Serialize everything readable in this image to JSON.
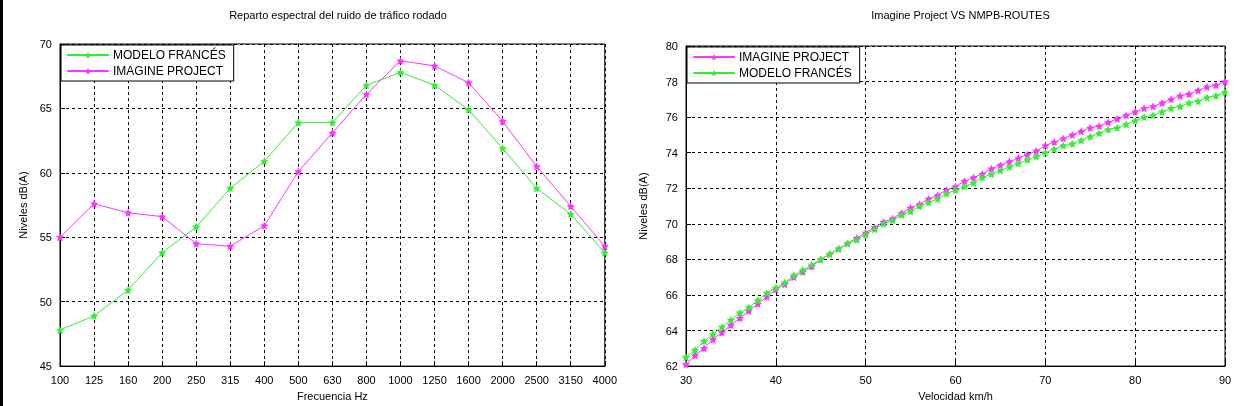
{
  "chart_data": [
    {
      "type": "line",
      "title": "Reparto espectral del ruido de tráfico rodado",
      "xlabel": "Frecuencia Hz",
      "ylabel": "Niveles dB(A)",
      "categories": [
        "100",
        "125",
        "160",
        "200",
        "250",
        "315",
        "400",
        "500",
        "630",
        "800",
        "1000",
        "1250",
        "1600",
        "2000",
        "2500",
        "3150",
        "4000"
      ],
      "series": [
        {
          "name": "MODELO FRANCÉS",
          "color": "#33ee33",
          "values": [
            47.8,
            48.9,
            50.9,
            53.8,
            55.8,
            58.8,
            60.9,
            63.9,
            63.9,
            66.8,
            67.8,
            66.8,
            64.9,
            61.9,
            58.8,
            56.8,
            53.8
          ]
        },
        {
          "name": "IMAGINE PROJECT",
          "color": "#ff33ff",
          "values": [
            55.0,
            57.6,
            56.9,
            56.6,
            54.5,
            54.3,
            55.9,
            60.1,
            63.1,
            66.1,
            68.7,
            68.3,
            67.0,
            64.0,
            60.5,
            57.4,
            54.3
          ]
        }
      ],
      "ylim": [
        45,
        70
      ],
      "yticks": [
        45,
        50,
        55,
        60,
        65,
        70
      ],
      "grid": true,
      "legend": "top left",
      "marker": "star",
      "line_style": "solid"
    },
    {
      "type": "line",
      "title": "Imagine Project VS NMPB-ROUTES",
      "xlabel": "Velocidad km/h",
      "ylabel": "Niveles dB(A)",
      "x": [
        30,
        31,
        32,
        33,
        34,
        35,
        36,
        37,
        38,
        39,
        40,
        41,
        42,
        43,
        44,
        45,
        46,
        47,
        48,
        49,
        50,
        51,
        52,
        53,
        54,
        55,
        56,
        57,
        58,
        59,
        60,
        61,
        62,
        63,
        64,
        65,
        66,
        67,
        68,
        69,
        70,
        71,
        72,
        73,
        74,
        75,
        76,
        77,
        78,
        79,
        80,
        81,
        82,
        83,
        84,
        85,
        86,
        87,
        88,
        89,
        90
      ],
      "series": [
        {
          "name": "IMAGINE PROJECT",
          "color": "#ff33ff",
          "values": [
            62.1,
            62.6,
            63.0,
            63.5,
            63.9,
            64.3,
            64.7,
            65.1,
            65.5,
            65.9,
            66.3,
            66.6,
            67.0,
            67.3,
            67.6,
            68.0,
            68.3,
            68.6,
            68.9,
            69.2,
            69.5,
            69.8,
            70.1,
            70.3,
            70.6,
            70.9,
            71.1,
            71.4,
            71.6,
            71.9,
            72.1,
            72.4,
            72.6,
            72.8,
            73.1,
            73.3,
            73.5,
            73.7,
            73.9,
            74.1,
            74.4,
            74.6,
            74.8,
            75.0,
            75.2,
            75.4,
            75.5,
            75.7,
            75.9,
            76.1,
            76.3,
            76.5,
            76.6,
            76.8,
            77.0,
            77.2,
            77.3,
            77.5,
            77.7,
            77.8,
            78.0
          ]
        },
        {
          "name": "MODELO FRANCÉS",
          "color": "#33ee33",
          "values": [
            62.5,
            62.9,
            63.4,
            63.8,
            64.2,
            64.6,
            65.0,
            65.3,
            65.7,
            66.1,
            66.4,
            66.7,
            67.1,
            67.4,
            67.7,
            68.0,
            68.3,
            68.6,
            68.9,
            69.1,
            69.4,
            69.7,
            70.0,
            70.2,
            70.5,
            70.7,
            71.0,
            71.2,
            71.4,
            71.7,
            71.9,
            72.1,
            72.3,
            72.6,
            72.8,
            73.0,
            73.2,
            73.4,
            73.6,
            73.8,
            74.0,
            74.2,
            74.4,
            74.5,
            74.7,
            74.9,
            75.1,
            75.3,
            75.4,
            75.6,
            75.8,
            76.0,
            76.1,
            76.3,
            76.5,
            76.6,
            76.8,
            76.9,
            77.1,
            77.2,
            77.4
          ]
        }
      ],
      "xlim": [
        30,
        90
      ],
      "xticks": [
        30,
        40,
        50,
        60,
        70,
        80,
        90
      ],
      "ylim": [
        62,
        80
      ],
      "yticks": [
        62,
        64,
        66,
        68,
        70,
        72,
        74,
        76,
        78,
        80
      ],
      "grid": true,
      "legend": "top left",
      "marker": "star",
      "line_style": "solid"
    }
  ]
}
